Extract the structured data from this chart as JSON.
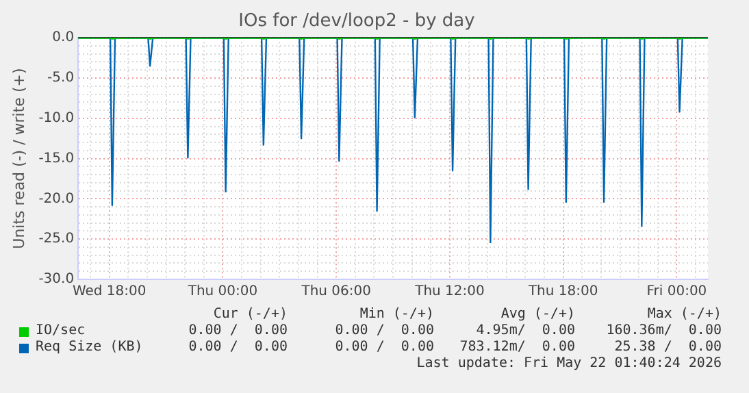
{
  "chart_data": {
    "type": "line",
    "title": "IOs for /dev/loop2 - by day",
    "ylabel": "Units read (-) / write (+)",
    "x": [
      "2026-05-20T16:21",
      "2026-05-20T18:03",
      "2026-05-20T18:09",
      "2026-05-20T18:18",
      "2026-05-20T20:03",
      "2026-05-20T20:09",
      "2026-05-20T20:18",
      "2026-05-20T22:03",
      "2026-05-20T22:09",
      "2026-05-20T22:18",
      "2026-05-21T00:03",
      "2026-05-21T00:09",
      "2026-05-21T00:18",
      "2026-05-21T02:03",
      "2026-05-21T02:09",
      "2026-05-21T02:18",
      "2026-05-21T04:03",
      "2026-05-21T04:09",
      "2026-05-21T04:18",
      "2026-05-21T06:03",
      "2026-05-21T06:09",
      "2026-05-21T06:18",
      "2026-05-21T08:03",
      "2026-05-21T08:09",
      "2026-05-21T08:18",
      "2026-05-21T10:03",
      "2026-05-21T10:09",
      "2026-05-21T10:18",
      "2026-05-21T12:03",
      "2026-05-21T12:09",
      "2026-05-21T12:18",
      "2026-05-21T14:03",
      "2026-05-21T14:09",
      "2026-05-21T14:18",
      "2026-05-21T16:03",
      "2026-05-21T16:09",
      "2026-05-21T16:18",
      "2026-05-21T18:03",
      "2026-05-21T18:09",
      "2026-05-21T18:18",
      "2026-05-21T20:03",
      "2026-05-21T20:09",
      "2026-05-21T20:18",
      "2026-05-21T22:03",
      "2026-05-21T22:09",
      "2026-05-21T22:18",
      "2026-05-22T00:03",
      "2026-05-22T00:09",
      "2026-05-22T00:18",
      "2026-05-22T01:39"
    ],
    "series": [
      {
        "name": "IO/sec",
        "color": "#00cc00",
        "values": [
          0,
          0,
          -0.1,
          0,
          0,
          -0.1,
          0,
          0,
          -0.1,
          0,
          0,
          -0.1,
          0,
          0,
          -0.1,
          0,
          0,
          -0.1,
          0,
          0,
          -0.1,
          0,
          0,
          -0.1,
          0,
          0,
          -0.1,
          0,
          0,
          -0.1,
          0,
          0,
          -0.1,
          0,
          0,
          -0.1,
          0,
          0,
          -0.1,
          0,
          0,
          -0.1,
          0,
          0,
          -0.1,
          0,
          0,
          -0.1,
          0,
          0
        ]
      },
      {
        "name": "Req Size (KB)",
        "color": "#0066b3",
        "values": [
          0,
          0,
          -20.8,
          0,
          0,
          -3.5,
          0,
          0,
          -14.9,
          0,
          0,
          -19.1,
          0,
          0,
          -13.3,
          0,
          0,
          -12.5,
          0,
          0,
          -15.3,
          0,
          0,
          -21.5,
          0,
          0,
          -9.9,
          0,
          0,
          -16.5,
          0,
          0,
          -25.4,
          0,
          0,
          -18.8,
          0,
          0,
          -20.4,
          0,
          0,
          -20.4,
          0,
          0,
          -23.4,
          0,
          0,
          -9.2,
          0,
          0
        ]
      }
    ],
    "xlim": [
      "2026-05-20T16:21",
      "2026-05-22T01:39"
    ],
    "xticks": [
      {
        "value": "2026-05-20T17:00",
        "label": null
      },
      {
        "value": "2026-05-20T18:00",
        "label": "Wed 18:00"
      },
      {
        "value": "2026-05-20T19:00",
        "label": null
      },
      {
        "value": "2026-05-20T20:00",
        "label": null
      },
      {
        "value": "2026-05-20T21:00",
        "label": null
      },
      {
        "value": "2026-05-20T22:00",
        "label": null
      },
      {
        "value": "2026-05-20T23:00",
        "label": null
      },
      {
        "value": "2026-05-21T00:00",
        "label": "Thu 00:00"
      },
      {
        "value": "2026-05-21T01:00",
        "label": null
      },
      {
        "value": "2026-05-21T02:00",
        "label": null
      },
      {
        "value": "2026-05-21T03:00",
        "label": null
      },
      {
        "value": "2026-05-21T04:00",
        "label": null
      },
      {
        "value": "2026-05-21T05:00",
        "label": null
      },
      {
        "value": "2026-05-21T06:00",
        "label": "Thu 06:00"
      },
      {
        "value": "2026-05-21T07:00",
        "label": null
      },
      {
        "value": "2026-05-21T08:00",
        "label": null
      },
      {
        "value": "2026-05-21T09:00",
        "label": null
      },
      {
        "value": "2026-05-21T10:00",
        "label": null
      },
      {
        "value": "2026-05-21T11:00",
        "label": null
      },
      {
        "value": "2026-05-21T12:00",
        "label": "Thu 12:00"
      },
      {
        "value": "2026-05-21T13:00",
        "label": null
      },
      {
        "value": "2026-05-21T14:00",
        "label": null
      },
      {
        "value": "2026-05-21T15:00",
        "label": null
      },
      {
        "value": "2026-05-21T16:00",
        "label": null
      },
      {
        "value": "2026-05-21T17:00",
        "label": null
      },
      {
        "value": "2026-05-21T18:00",
        "label": "Thu 18:00"
      },
      {
        "value": "2026-05-21T19:00",
        "label": null
      },
      {
        "value": "2026-05-21T20:00",
        "label": null
      },
      {
        "value": "2026-05-21T21:00",
        "label": null
      },
      {
        "value": "2026-05-21T22:00",
        "label": null
      },
      {
        "value": "2026-05-21T23:00",
        "label": null
      },
      {
        "value": "2026-05-22T00:00",
        "label": "Fri 00:00"
      },
      {
        "value": "2026-05-22T01:00",
        "label": null
      }
    ],
    "ylim": [
      -30,
      0
    ],
    "yticks": [
      {
        "value": -30,
        "label": "-30.0"
      },
      {
        "value": -29,
        "label": null
      },
      {
        "value": -28,
        "label": null
      },
      {
        "value": -27,
        "label": null
      },
      {
        "value": -26,
        "label": null
      },
      {
        "value": -25,
        "label": "-25.0"
      },
      {
        "value": -24,
        "label": null
      },
      {
        "value": -23,
        "label": null
      },
      {
        "value": -22,
        "label": null
      },
      {
        "value": -21,
        "label": null
      },
      {
        "value": -20,
        "label": "-20.0"
      },
      {
        "value": -19,
        "label": null
      },
      {
        "value": -18,
        "label": null
      },
      {
        "value": -17,
        "label": null
      },
      {
        "value": -16,
        "label": null
      },
      {
        "value": -15,
        "label": "-15.0"
      },
      {
        "value": -14,
        "label": null
      },
      {
        "value": -13,
        "label": null
      },
      {
        "value": -12,
        "label": null
      },
      {
        "value": -11,
        "label": null
      },
      {
        "value": -10,
        "label": "-10.0"
      },
      {
        "value": -9,
        "label": null
      },
      {
        "value": -8,
        "label": null
      },
      {
        "value": -7,
        "label": null
      },
      {
        "value": -6,
        "label": null
      },
      {
        "value": -5,
        "label": "-5.0"
      },
      {
        "value": -4,
        "label": null
      },
      {
        "value": -3,
        "label": null
      },
      {
        "value": -2,
        "label": null
      },
      {
        "value": -1,
        "label": null
      },
      {
        "value": 0,
        "label": "0.0"
      }
    ],
    "ref_lines": [
      {
        "axis": "y",
        "value": 0,
        "color": "#000000"
      }
    ],
    "grid": true,
    "legend": "bottom",
    "marker": "none",
    "line_style": "solid",
    "annotations": [
      "Cur (-/+)",
      "Min (-/+)",
      "Avg (-/+)",
      "Max (-/+)",
      "0.00 /  0.00",
      "0.00 /  0.00",
      "4.95m/  0.00",
      "160.36m/  0.00",
      "0.00 /  0.00",
      "0.00 /  0.00",
      "783.12m/  0.00",
      "25.38 /  0.00",
      "Last update: Fri May 22 01:40:24 2026"
    ]
  }
}
